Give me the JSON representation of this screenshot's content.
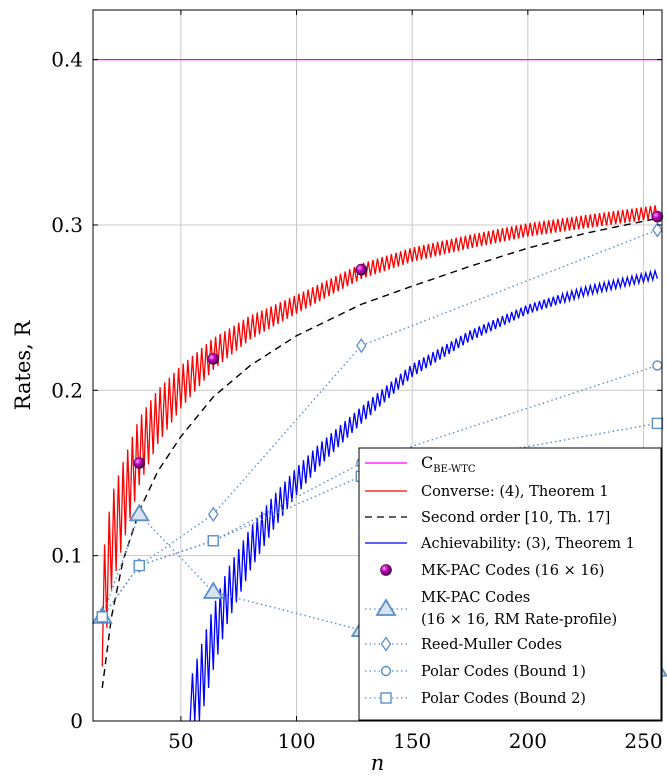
{
  "chart_data": {
    "type": "line",
    "xlabel": "n",
    "ylabel": "Rates, R",
    "xlim": [
      12,
      258
    ],
    "ylim": [
      0,
      0.43
    ],
    "x_ticks": [
      "50",
      "100",
      "150",
      "200",
      "250"
    ],
    "y_ticks": [
      "0",
      "0.1",
      "0.2",
      "0.3",
      "0.4"
    ],
    "grid": true,
    "legend_position": "bottom-right",
    "series": [
      {
        "name": "C_BE-WTC",
        "legend": "C",
        "legend_sub": "BE-WTC",
        "color": "#ff00ff",
        "style": "solid",
        "x": [
          12,
          258
        ],
        "y": [
          0.4,
          0.4
        ]
      },
      {
        "name": "Converse: (4), Theorem 1",
        "color": "#ff0000",
        "style": "solid",
        "x": [
          16,
          20,
          25,
          32,
          40,
          50,
          64,
          80,
          100,
          128,
          150,
          175,
          200,
          225,
          256
        ],
        "y": [
          0.065,
          0.108,
          0.132,
          0.163,
          0.184,
          0.202,
          0.222,
          0.238,
          0.252,
          0.272,
          0.282,
          0.29,
          0.297,
          0.302,
          0.308
        ]
      },
      {
        "name": "Second order [10, Th. 17]",
        "color": "#000000",
        "style": "dashed",
        "x": [
          16,
          20,
          25,
          32,
          40,
          50,
          64,
          80,
          100,
          128,
          150,
          175,
          200,
          225,
          256
        ],
        "y": [
          0.02,
          0.063,
          0.097,
          0.127,
          0.151,
          0.172,
          0.196,
          0.215,
          0.233,
          0.252,
          0.263,
          0.275,
          0.286,
          0.295,
          0.304
        ]
      },
      {
        "name": "Achievability: (3), Theorem 1",
        "color": "#0000ff",
        "style": "solid",
        "x": [
          54,
          60,
          64,
          70,
          80,
          90,
          100,
          110,
          128,
          150,
          175,
          200,
          225,
          256
        ],
        "y": [
          0,
          0.03,
          0.05,
          0.075,
          0.104,
          0.126,
          0.145,
          0.161,
          0.185,
          0.212,
          0.233,
          0.249,
          0.26,
          0.27
        ]
      },
      {
        "name": "MK-PAC Codes (16 × 16)",
        "color": "#a000a0",
        "style": "marker-only",
        "marker": "sphere",
        "x": [
          16,
          32,
          64,
          128,
          256
        ],
        "y": [
          0.063,
          0.156,
          0.219,
          0.273,
          0.305
        ]
      },
      {
        "name": "MK-PAC Codes (16 × 16, RM Rate-profile)",
        "legend_line1": "MK-PAC Codes",
        "legend_line2": "(16 × 16, RM Rate-profile)",
        "color": "#5b8fc7",
        "style": "dotted",
        "marker": "triangle",
        "x": [
          16,
          32,
          64,
          128,
          256
        ],
        "y": [
          0.063,
          0.125,
          0.078,
          0.055,
          0.031
        ]
      },
      {
        "name": "Reed-Muller Codes",
        "color": "#5b8fc7",
        "style": "dotted",
        "marker": "diamond",
        "x": [
          16,
          32,
          64,
          128,
          256
        ],
        "y": [
          0.063,
          0.094,
          0.125,
          0.227,
          0.297
        ]
      },
      {
        "name": "Polar Codes (Bound 1)",
        "color": "#5b8fc7",
        "style": "dotted",
        "marker": "circle",
        "x": [
          16,
          32,
          64,
          128,
          256
        ],
        "y": [
          0.063,
          0.094,
          0.109,
          0.156,
          0.215
        ]
      },
      {
        "name": "Polar Codes (Bound 2)",
        "color": "#5b8fc7",
        "style": "dotted",
        "marker": "square",
        "x": [
          16,
          32,
          64,
          128,
          256
        ],
        "y": [
          0.063,
          0.094,
          0.109,
          0.148,
          0.18
        ]
      }
    ]
  }
}
